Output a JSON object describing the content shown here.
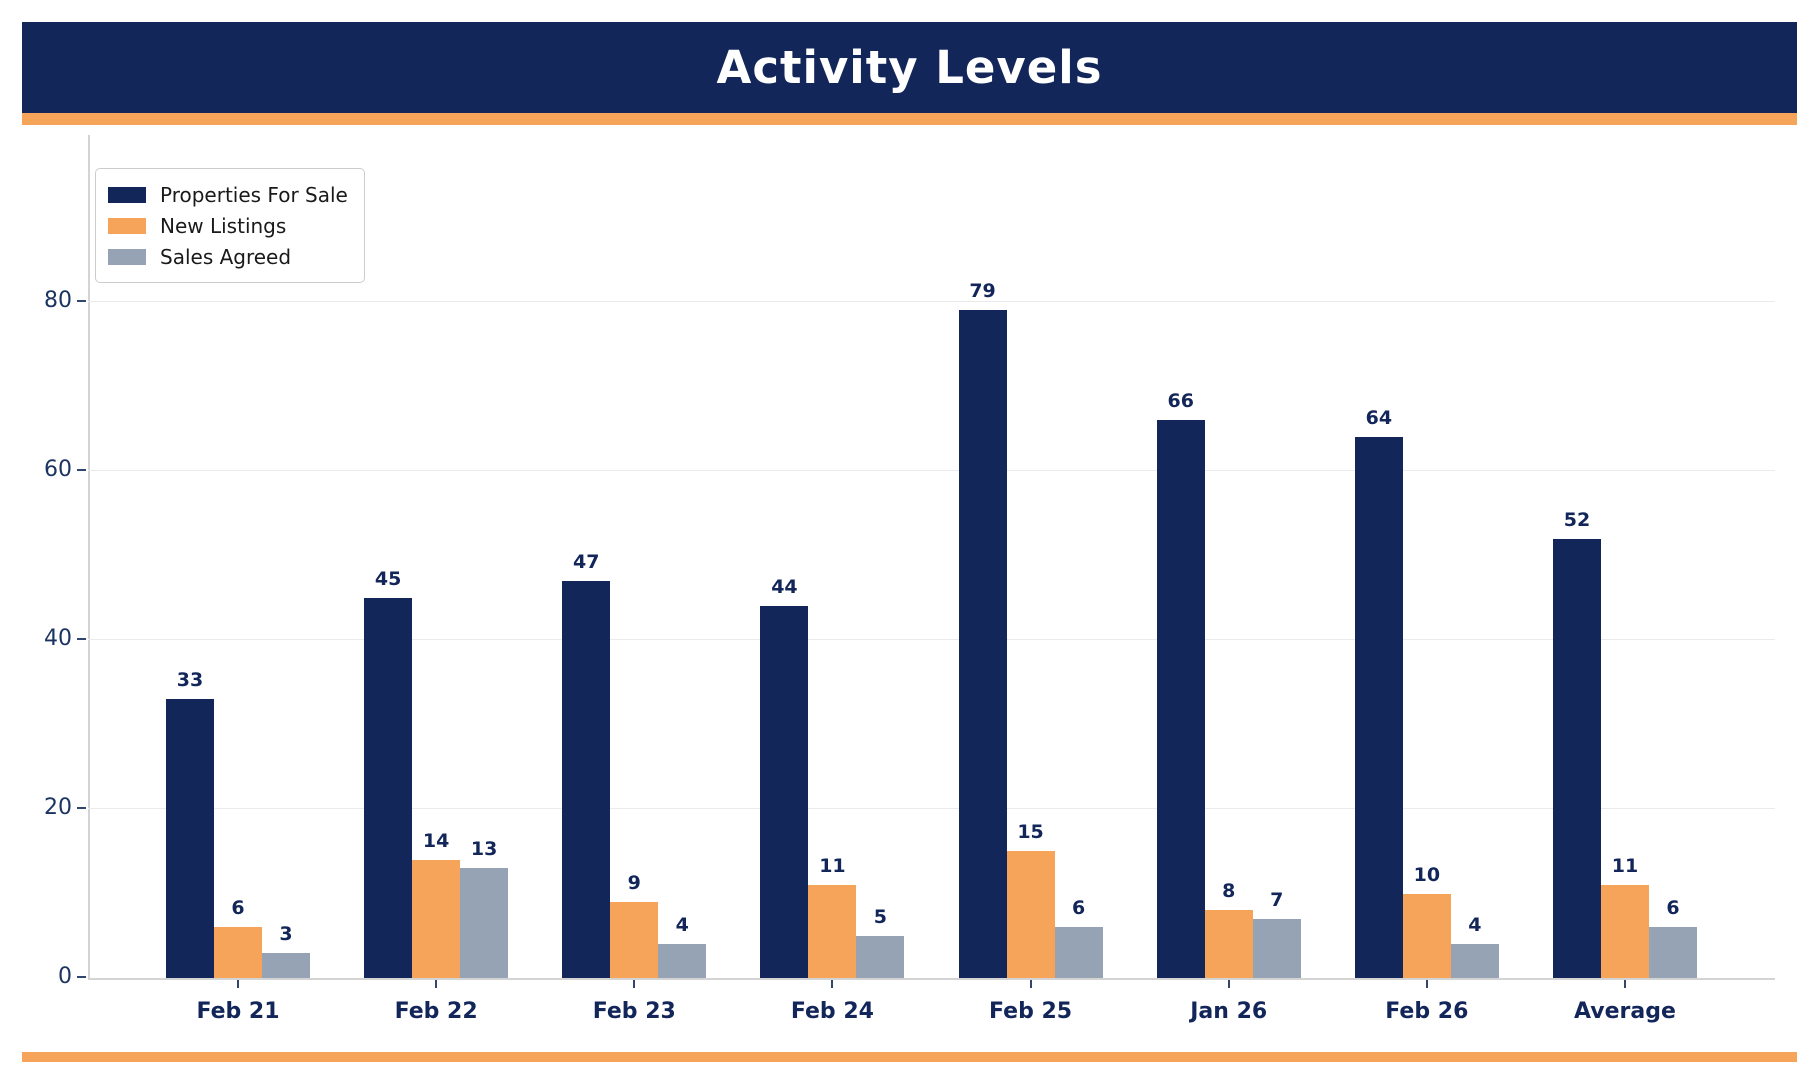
{
  "header": {
    "title": "Activity Levels"
  },
  "colors": {
    "banner_bg": "#13265a",
    "accent_orange": "#f6a45a",
    "series_navy": "#13265a",
    "series_orange": "#f6a45a",
    "series_gray": "#95a3b5",
    "label_navy": "#13265a"
  },
  "chart_data": {
    "type": "bar",
    "title": "Activity Levels",
    "categories": [
      "Feb 21",
      "Feb 22",
      "Feb 23",
      "Feb 24",
      "Feb 25",
      "Jan 26",
      "Feb 26",
      "Average"
    ],
    "series": [
      {
        "name": "Properties For Sale",
        "color": "#13265a",
        "values": [
          33,
          45,
          47,
          44,
          79,
          66,
          64,
          52
        ]
      },
      {
        "name": "New Listings",
        "color": "#f6a45a",
        "values": [
          6,
          14,
          9,
          11,
          15,
          8,
          10,
          11
        ]
      },
      {
        "name": "Sales Agreed",
        "color": "#95a3b5",
        "values": [
          3,
          13,
          4,
          5,
          6,
          7,
          4,
          6
        ]
      }
    ],
    "xlabel": "",
    "ylabel": "",
    "ylim": [
      0,
      80
    ],
    "yticks": [
      0,
      20,
      40,
      60,
      80
    ],
    "grid": "horizontal",
    "legend_position": "upper-left",
    "bar_value_labels": true
  }
}
